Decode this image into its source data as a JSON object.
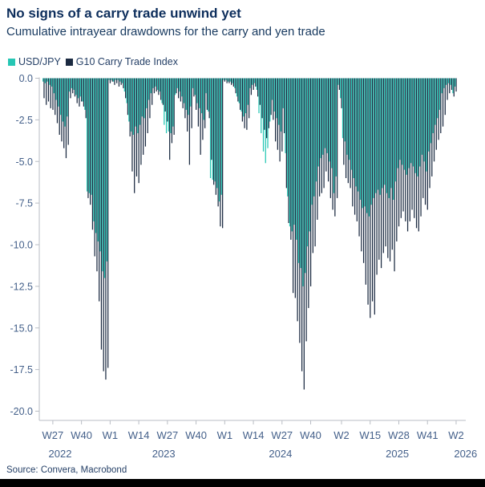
{
  "header": {
    "title": "No signs of a carry trade unwind yet",
    "subtitle": "Cumulative intrayear drawdowns for the carry and yen trade"
  },
  "legend": {
    "items": [
      {
        "label": "USD/JPY",
        "color": "#26c6b4"
      },
      {
        "label": "G10 Carry Trade Index",
        "color": "#1b2a41"
      }
    ]
  },
  "source": "Source: Convera, Macrobond",
  "colors": {
    "usdjpy": "#26c6b4",
    "g10": "#1b2a41",
    "axis_line": "#b9bdc4",
    "axis_text": "#44608a",
    "title_text": "#0d2e5c",
    "footer_bar": "#000000"
  },
  "chart_data": {
    "type": "bar",
    "title": "No signs of a carry trade unwind yet",
    "subtitle": "Cumulative intrayear drawdowns for the carry and yen trade",
    "ylabel": "",
    "xlabel": "",
    "ylim": [
      0,
      -20.5
    ],
    "grid": false,
    "legend_position": "top-left",
    "y_ticks": [
      {
        "v": 0,
        "label": "0.0"
      },
      {
        "v": -2.5,
        "label": "-2.5"
      },
      {
        "v": -5,
        "label": "-5.0"
      },
      {
        "v": -7.5,
        "label": "-7.5"
      },
      {
        "v": -10,
        "label": "-10.0"
      },
      {
        "v": -12.5,
        "label": "-12.5"
      },
      {
        "v": -15,
        "label": "-15.0"
      },
      {
        "v": -17.5,
        "label": "-17.5"
      },
      {
        "v": -20,
        "label": "-20.0"
      }
    ],
    "x_ticks": [
      {
        "index": 4,
        "label": "W27"
      },
      {
        "index": 17,
        "label": "W40"
      },
      {
        "index": 30,
        "label": "W1"
      },
      {
        "index": 43,
        "label": "W14"
      },
      {
        "index": 56,
        "label": "W27"
      },
      {
        "index": 69,
        "label": "W40"
      },
      {
        "index": 82,
        "label": "W1"
      },
      {
        "index": 95,
        "label": "W14"
      },
      {
        "index": 108,
        "label": "W27"
      },
      {
        "index": 121,
        "label": "W40"
      },
      {
        "index": 135,
        "label": "W2"
      },
      {
        "index": 148,
        "label": "W15"
      },
      {
        "index": 161,
        "label": "W28"
      },
      {
        "index": 174,
        "label": "W41"
      },
      {
        "index": 187,
        "label": "W2"
      }
    ],
    "year_labels": [
      {
        "index": 8,
        "label": "2022"
      },
      {
        "index": 55,
        "label": "2023"
      },
      {
        "index": 108,
        "label": "2024"
      },
      {
        "index": 161,
        "label": "2025"
      },
      {
        "index": 192,
        "label": "2026"
      }
    ],
    "series": [
      {
        "name": "USD/JPY",
        "color": "#26c6b4",
        "values": [
          -0.2,
          -0.3,
          -0.2,
          -0.4,
          -0.5,
          -0.9,
          -1.3,
          -1.7,
          -2.2,
          -2.6,
          -2.9,
          -2.3,
          -0.8,
          -0.6,
          -0.7,
          -1.0,
          -1.2,
          -1.1,
          -1.4,
          -1.9,
          -6.8,
          -6.9,
          -7.0,
          -8.6,
          -9.3,
          -9.8,
          -10.4,
          -11.6,
          -12.0,
          -11.0,
          -0.1,
          -0.1,
          -0.2,
          -0.1,
          -0.1,
          -0.2,
          -0.3,
          -0.8,
          -1.5,
          -2.6,
          -3.2,
          -3.4,
          -2.9,
          -3.3,
          -2.8,
          -2.3,
          -2.4,
          -1.8,
          -1.3,
          -0.9,
          -0.6,
          -0.5,
          -0.7,
          -0.8,
          -1.5,
          -2.8,
          -3.3,
          -3.2,
          -3.3,
          -2.9,
          -1.0,
          -0.6,
          -0.8,
          -1.1,
          -1.5,
          -1.9,
          -2.2,
          -1.7,
          -0.6,
          -1.0,
          -1.5,
          -1.8,
          -2.1,
          -2.5,
          -0.9,
          -2.0,
          -6.0,
          -6.1,
          -6.2,
          -6.6,
          -7.4,
          -7.0,
          -0.1,
          -0.1,
          -0.2,
          -0.2,
          -0.3,
          -0.6,
          -1.1,
          -1.5,
          -2.0,
          -2.3,
          -2.1,
          -1.6,
          -0.6,
          -0.4,
          -0.3,
          -0.7,
          -2.1,
          -3.3,
          -4.4,
          -5.1,
          -4.2,
          -2.6,
          -1.3,
          -2.0,
          -2.4,
          -2.8,
          -3.2,
          -1.8,
          -4.5,
          -7.1,
          -8.9,
          -9.2,
          -8.8,
          -9.7,
          -11.1,
          -11.4,
          -12.5,
          -11.7,
          -10.1,
          -9.2,
          -7.6,
          -7.1,
          -6.2,
          -5.3,
          -4.8,
          -4.6,
          -4.2,
          -4.5,
          -5.0,
          -5.4,
          -6.9,
          -5.9,
          -0.4,
          -1.2,
          -3.6,
          -3.8,
          -4.6,
          -4.9,
          -5.5,
          -6.0,
          -6.5,
          -6.8,
          -7.3,
          -7.8,
          -7.7,
          -8.1,
          -8.3,
          -7.6,
          -7.2,
          -6.9,
          -6.7,
          -7.0,
          -6.6,
          -6.4,
          -6.9,
          -7.2,
          -6.6,
          -7.3,
          -6.2,
          -5.4,
          -4.9,
          -5.2,
          -5.5,
          -5.8,
          -5.4,
          -5.1,
          -5.3,
          -5.7,
          -5.9,
          -5.3,
          -4.6,
          -5.0,
          -5.6,
          -4.4,
          -3.9,
          -3.3,
          -2.8,
          -2.4,
          -1.9,
          -0.9,
          -0.6,
          -0.4,
          -0.3,
          -0.4,
          -0.9,
          -0.5
        ]
      },
      {
        "name": "G10 Carry Trade Index",
        "color": "#1b2a41",
        "values": [
          -1.2,
          -1.6,
          -1.4,
          -1.8,
          -1.9,
          -2.2,
          -2.7,
          -3.4,
          -3.8,
          -4.2,
          -4.8,
          -4.0,
          -1.2,
          -0.9,
          -1.1,
          -1.5,
          -1.7,
          -1.4,
          -1.7,
          -2.4,
          -7.2,
          -7.6,
          -9.1,
          -10.7,
          -11.6,
          -13.4,
          -16.3,
          -17.6,
          -18.1,
          -17.4,
          -0.3,
          -0.2,
          -0.4,
          -0.3,
          -0.5,
          -0.4,
          -0.6,
          -1.2,
          -2.2,
          -3.5,
          -5.6,
          -6.9,
          -5.9,
          -6.3,
          -5.2,
          -4.6,
          -4.1,
          -3.3,
          -2.4,
          -1.6,
          -0.9,
          -0.8,
          -1.0,
          -1.3,
          -1.6,
          -2.0,
          -2.6,
          -4.9,
          -3.9,
          -3.4,
          -0.9,
          -1.2,
          -1.4,
          -1.8,
          -2.4,
          -3.2,
          -5.2,
          -3.0,
          -1.1,
          -1.9,
          -2.9,
          -4.6,
          -3.7,
          -3.0,
          -1.9,
          -2.4,
          -4.9,
          -6.4,
          -7.0,
          -7.7,
          -8.9,
          -9.0,
          -0.2,
          -0.3,
          -0.3,
          -0.4,
          -0.5,
          -0.9,
          -1.4,
          -1.9,
          -2.6,
          -3.0,
          -3.1,
          -2.4,
          -1.0,
          -0.7,
          -0.5,
          -1.1,
          -1.6,
          -2.4,
          -3.1,
          -3.6,
          -3.0,
          -2.2,
          -2.5,
          -3.8,
          -4.3,
          -5.0,
          -4.4,
          -3.3,
          -6.6,
          -8.7,
          -9.7,
          -12.9,
          -13.2,
          -14.6,
          -15.9,
          -17.6,
          -18.7,
          -15.8,
          -13.8,
          -12.5,
          -10.5,
          -10.1,
          -8.5,
          -7.1,
          -6.9,
          -6.6,
          -5.6,
          -6.2,
          -7.2,
          -7.9,
          -8.3,
          -7.2,
          -0.7,
          -1.8,
          -5.2,
          -6.0,
          -6.3,
          -6.6,
          -7.7,
          -8.2,
          -8.6,
          -9.5,
          -10.4,
          -11.1,
          -12.4,
          -13.6,
          -14.4,
          -13.4,
          -14.2,
          -11.8,
          -10.9,
          -11.4,
          -10.5,
          -10.1,
          -10.8,
          -11.0,
          -10.3,
          -11.6,
          -9.8,
          -8.9,
          -8.4,
          -8.0,
          -8.6,
          -9.2,
          -8.6,
          -7.9,
          -8.4,
          -9.0,
          -9.2,
          -8.3,
          -7.2,
          -7.6,
          -7.9,
          -6.6,
          -5.9,
          -5.0,
          -4.3,
          -3.7,
          -3.3,
          -2.9,
          -2.2,
          -1.3,
          -0.9,
          -0.7,
          -1.1,
          -0.8
        ]
      }
    ]
  }
}
